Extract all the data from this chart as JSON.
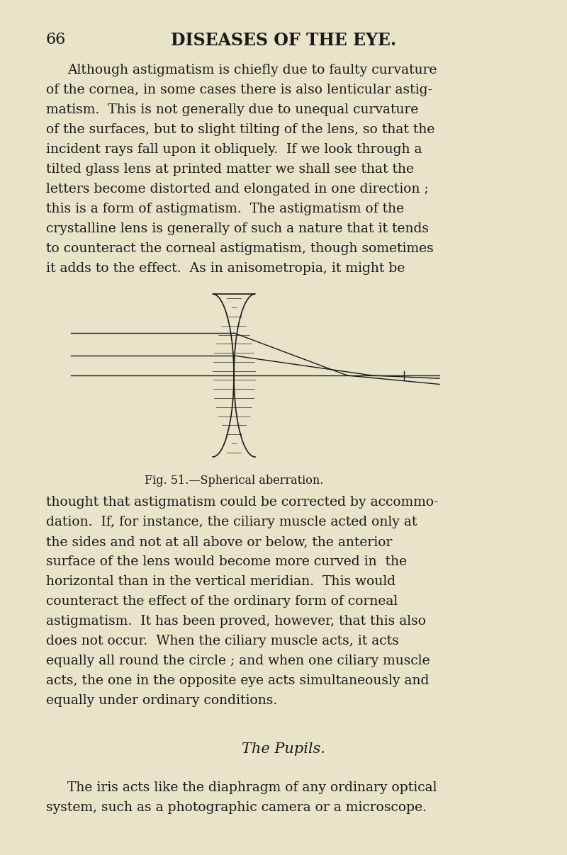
{
  "bg_color": "#e8e4c9",
  "page_number": "66",
  "header": "DISEASES OF THE EYE.",
  "text_color": "#1a1a1a",
  "font_size_body": 13.5,
  "font_size_header": 16,
  "font_size_caption": 11.5,
  "font_size_section": 14,
  "paragraph1": "Although astigmatism is chiefly due to faulty curvature of the cornea, in some cases there is also lenticular astig-\nmatism.  This is not generally due to unequal curvature of the surfaces, but to slight tilting of the lens, so that the\nincident rays fall upon it obliquely.  If we look through a tilted glass lens at printed matter we shall see that the\nletters become distorted and elongated in one direction ; this is a form of astigmatism.  The astigmatism of the\ncrystalline lens is generally of such a nature that it tends to counteract the corneal astigmatism, though sometimes\nit adds to the effect.  As in anisometropia, it might be",
  "caption": "Fig. 51.—Spherical aberration.",
  "paragraph2": "thought that astigmatism could be corrected by accommo-\ndation.  If, for instance, the ciliary muscle acted only at the sides and not at all above or below, the anterior\nsurface of the lens would become more curved in the horizontal than in the vertical meridian.  This would\ncounteract the effect of the ordinary form of corneal astigmatism.  It has been proved, however, that this also\ndoes not occur.  When the ciliary muscle acts, it acts equally all round the circle ; and when one ciliary muscle\nacts, the one in the opposite eye acts simultaneously and equally under ordinary conditions.",
  "section_title": "The Pupils.",
  "paragraph3": "The iris acts like the diaphragm of any ordinary optical system, such as a photographic camera or a microscope."
}
